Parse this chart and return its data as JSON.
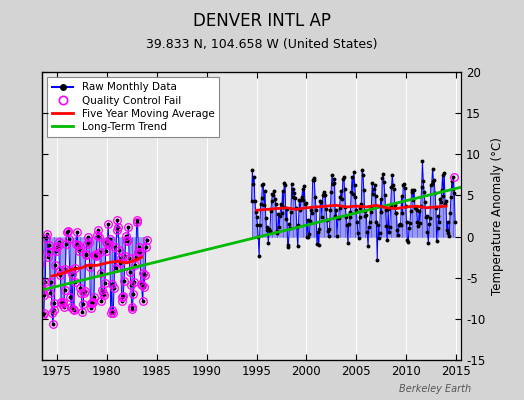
{
  "title": "DENVER INTL AP",
  "subtitle": "39.833 N, 104.658 W (United States)",
  "ylabel": "Temperature Anomaly (°C)",
  "watermark": "Berkeley Earth",
  "xlim": [
    1973.5,
    2015.5
  ],
  "ylim": [
    -15,
    20
  ],
  "yticks": [
    -15,
    -10,
    -5,
    0,
    5,
    10,
    15,
    20
  ],
  "xticks": [
    1975,
    1980,
    1985,
    1990,
    1995,
    2000,
    2005,
    2010,
    2015
  ],
  "bg_color": "#d4d4d4",
  "plot_bg_color": "#e8e8e8",
  "raw_color": "#0000ff",
  "qc_color": "#ff00ff",
  "mavg_color": "#ff0000",
  "trend_color": "#00bb00",
  "trend_x": [
    1973.5,
    2015.5
  ],
  "trend_y": [
    -6.5,
    6.0
  ],
  "mavg_early_x": [
    1974.5,
    1975.5,
    1976.5,
    1977.5,
    1978.0,
    1979.0,
    1980.0,
    1981.0,
    1982.0,
    1983.0,
    1983.5
  ],
  "mavg_early_y": [
    -4.8,
    -4.5,
    -4.0,
    -3.8,
    -3.5,
    -3.5,
    -3.2,
    -3.0,
    -3.2,
    -2.8,
    -2.5
  ],
  "mavg_late_x": [
    1995.0,
    1996.0,
    1997.0,
    1998.0,
    1999.0,
    2000.0,
    2001.0,
    2002.0,
    2003.0,
    2004.0,
    2005.0,
    2006.0,
    2007.0,
    2008.0,
    2009.0,
    2010.0,
    2011.0,
    2012.0,
    2013.0,
    2014.0
  ],
  "mavg_late_y": [
    3.2,
    3.3,
    3.4,
    3.5,
    3.3,
    3.5,
    3.6,
    3.7,
    3.8,
    3.6,
    3.7,
    3.6,
    3.8,
    3.5,
    3.4,
    3.6,
    3.7,
    3.5,
    3.6,
    3.7
  ],
  "seed_early": 17,
  "seed_late": 99
}
